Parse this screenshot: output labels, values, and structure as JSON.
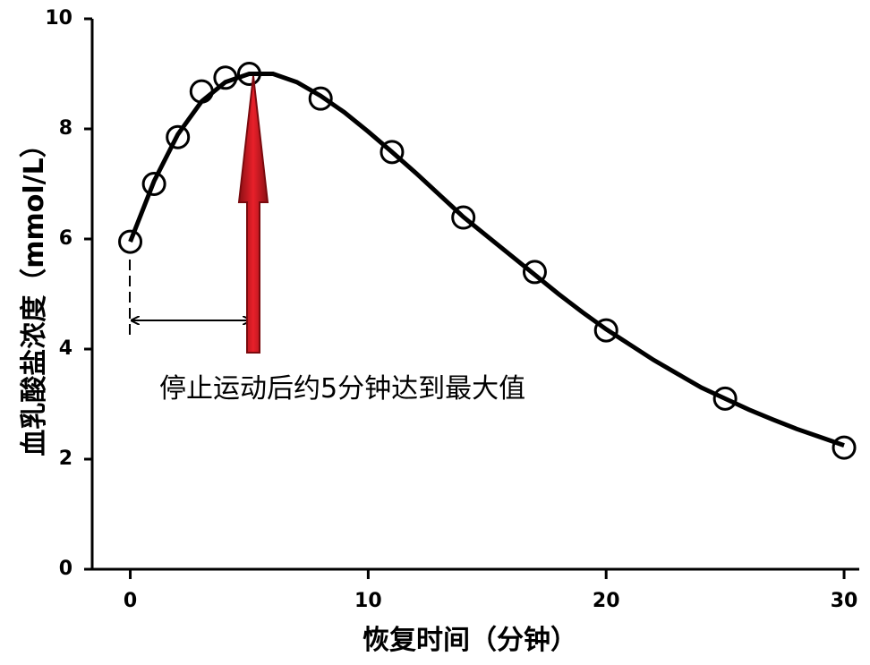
{
  "chart_data": {
    "type": "scatter",
    "x_label": "恢复时间（分钟）",
    "y_label": "血乳酸盐浓度（mmol/L）",
    "annotation": "停止运动后约5分钟达到最大值",
    "xlim": [
      -1.6,
      30.6
    ],
    "xticks": [
      0,
      10,
      20,
      30
    ],
    "ylim": [
      0,
      10
    ],
    "yticks": [
      0,
      2,
      4,
      6,
      8,
      10
    ],
    "series": [
      {
        "type": "scatter",
        "color": "#000000",
        "x": [
          0,
          1,
          2,
          3,
          4,
          5,
          8,
          11,
          14,
          17,
          20,
          25,
          30
        ],
        "values": [
          5.95,
          7.0,
          7.85,
          8.68,
          8.93,
          9.0,
          8.55,
          7.58,
          6.39,
          5.4,
          4.34,
          3.1,
          2.21
        ]
      },
      {
        "type": "line",
        "color": "#000000",
        "x": [
          0,
          1,
          2,
          3,
          4,
          5,
          6,
          7,
          8,
          9,
          10,
          11,
          12,
          13,
          14,
          15,
          16,
          17,
          18,
          19,
          20,
          21,
          22,
          23,
          24,
          25,
          26,
          27,
          28,
          29,
          30
        ],
        "values": [
          5.95,
          7.05,
          7.9,
          8.5,
          8.85,
          9.0,
          9.0,
          8.85,
          8.6,
          8.3,
          7.95,
          7.58,
          7.2,
          6.8,
          6.4,
          6.05,
          5.7,
          5.35,
          5.0,
          4.67,
          4.36,
          4.08,
          3.8,
          3.55,
          3.3,
          3.1,
          2.9,
          2.72,
          2.55,
          2.4,
          2.25
        ]
      }
    ]
  }
}
